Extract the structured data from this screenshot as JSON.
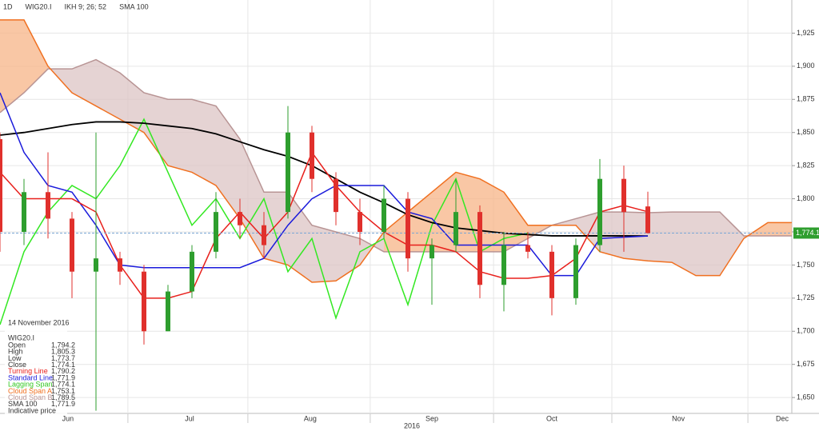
{
  "chart_data": {
    "type": "candlestick",
    "header": [
      "1D",
      "WIG20.I",
      "IKH 9; 26; 52",
      "SMA 100"
    ],
    "xlim": [
      0,
      33
    ],
    "ylim": [
      1638,
      1950
    ],
    "xticks": [
      {
        "value": 2.83,
        "label": "Jun"
      },
      {
        "value": 7.9,
        "label": "Jul"
      },
      {
        "value": 12.93,
        "label": "Aug"
      },
      {
        "value": 18,
        "label": "Sep"
      },
      {
        "value": 23,
        "label": "Oct"
      },
      {
        "value": 28.27,
        "label": "Nov"
      },
      {
        "value": 32.6,
        "label": "Dec"
      }
    ],
    "xgrid": [
      5.33,
      10.33,
      15.43,
      20.57,
      25.5,
      31.17
    ],
    "year_label": "2016",
    "yticks": [
      {
        "value": 1650,
        "label": "1,650"
      },
      {
        "value": 1675,
        "label": "1,675"
      },
      {
        "value": 1700,
        "label": "1,700"
      },
      {
        "value": 1725,
        "label": "1,725"
      },
      {
        "value": 1750,
        "label": "1,750"
      },
      {
        "value": 1775,
        "label": "1,775"
      },
      {
        "value": 1800,
        "label": "1,800"
      },
      {
        "value": 1825,
        "label": "1,825"
      },
      {
        "value": 1850,
        "label": "1,850"
      },
      {
        "value": 1875,
        "label": "1,875"
      },
      {
        "value": 1900,
        "label": "1,900"
      },
      {
        "value": 1925,
        "label": "1,925"
      }
    ],
    "grid": true,
    "candles": {
      "up_color": "#2e9e2e",
      "down_color": "#e0302c",
      "open": [
        1845,
        1775,
        1805,
        1785,
        1745,
        1755,
        1745,
        1700,
        1730,
        1760,
        1790,
        1780,
        1790,
        1850,
        1815,
        1790,
        1775,
        1800,
        1755,
        1765,
        1790,
        1735,
        1765,
        1760,
        1725,
        1765,
        1815,
        1794.2
      ],
      "high": [
        1850,
        1815,
        1835,
        1790,
        1850,
        1760,
        1750,
        1735,
        1765,
        1805,
        1800,
        1790,
        1870,
        1855,
        1820,
        1800,
        1810,
        1805,
        1770,
        1815,
        1795,
        1775,
        1775,
        1765,
        1770,
        1830,
        1825,
        1805.3
      ],
      "low": [
        1760,
        1765,
        1770,
        1725,
        1640,
        1735,
        1690,
        1700,
        1725,
        1755,
        1770,
        1755,
        1785,
        1805,
        1780,
        1765,
        1770,
        1745,
        1720,
        1760,
        1725,
        1715,
        1755,
        1712,
        1720,
        1760,
        1760,
        1773.7
      ],
      "close": [
        1775,
        1805,
        1785,
        1745,
        1755,
        1745,
        1700,
        1730,
        1760,
        1790,
        1780,
        1765,
        1850,
        1815,
        1790,
        1775,
        1800,
        1755,
        1765,
        1790,
        1735,
        1765,
        1760,
        1725,
        1765,
        1815,
        1790,
        1774.1
      ]
    },
    "series": [
      {
        "name": "Cloud Span B",
        "color": "#b89494",
        "values": [
          1865,
          1880,
          1898,
          1898,
          1905,
          1895,
          1880,
          1875,
          1875,
          1870,
          1845,
          1805,
          1805,
          1780,
          1775,
          1770,
          1760,
          1760,
          1760,
          1760,
          1760,
          1760,
          1770,
          1780,
          1785,
          1790,
          1790,
          1789.5,
          1790,
          1790,
          1790,
          1772,
          1772,
          1772
        ]
      },
      {
        "name": "Cloud Span A",
        "color": "#f07020",
        "values": [
          1935,
          1935,
          1900,
          1880,
          1870,
          1860,
          1850,
          1825,
          1820,
          1810,
          1785,
          1755,
          1750,
          1737,
          1738,
          1750,
          1775,
          1790,
          1805,
          1820,
          1815,
          1805,
          1780,
          1780,
          1780,
          1760,
          1755,
          1753.1,
          1752,
          1742,
          1742,
          1770,
          1782,
          1782
        ]
      },
      {
        "name": "Lagging Span",
        "color": "#33e822",
        "values": [
          1705,
          1760,
          1790,
          1810,
          1800,
          1825,
          1860,
          1820,
          1780,
          1800,
          1770,
          1800,
          1745,
          1770,
          1710,
          1760,
          1770,
          1720,
          1780,
          1815,
          1760,
          1770,
          1774.1,
          null,
          null,
          null,
          null,
          null,
          null,
          null,
          null,
          null,
          null,
          null
        ]
      },
      {
        "name": "SMA 100",
        "color": "#000000",
        "values": [
          1848,
          1850,
          1853,
          1856,
          1858,
          1858,
          1857,
          1855,
          1853,
          1849,
          1843,
          1837,
          1832,
          1825,
          1815,
          1805,
          1797,
          1788,
          1782,
          1778,
          1776,
          1774,
          1773,
          1772,
          1772,
          1772,
          1772,
          1771.9,
          null,
          null,
          null,
          null,
          null,
          null
        ]
      },
      {
        "name": "Standard Line",
        "color": "#1a1adb",
        "values": [
          1880,
          1835,
          1810,
          1805,
          1780,
          1750,
          1748,
          1748,
          1748,
          1748,
          1748,
          1755,
          1780,
          1800,
          1810,
          1810,
          1810,
          1790,
          1785,
          1765,
          1765,
          1765,
          1765,
          1742,
          1742,
          1770,
          1771,
          1771.9,
          null,
          null,
          null,
          null,
          null,
          null
        ]
      },
      {
        "name": "Turning Line",
        "color": "#e8201c",
        "values": [
          1820,
          1800,
          1800,
          1800,
          1790,
          1750,
          1725,
          1725,
          1730,
          1770,
          1790,
          1770,
          1790,
          1835,
          1810,
          1790,
          1775,
          1765,
          1765,
          1760,
          1745,
          1740,
          1740,
          1742,
          1755,
          1790,
          1795,
          1790.2,
          null,
          null,
          null,
          null,
          null,
          null
        ]
      }
    ],
    "last_price": {
      "value": 1774.1,
      "label": "1,774.1",
      "color": "#2e9e2e"
    },
    "info_panel": {
      "date": "14 November 2016",
      "symbol": "WIG20.I",
      "rows": [
        [
          "Open",
          "1,794.2"
        ],
        [
          "High",
          "1,805.3"
        ],
        [
          "Low",
          "1,773.7"
        ],
        [
          "Close",
          "1,774.1"
        ],
        [
          "Turning Line",
          "1,790.2"
        ],
        [
          "Standard Line",
          "1,771.9"
        ],
        [
          "Lagging Span",
          "1,774.1"
        ],
        [
          "Cloud Span A",
          "1,753.1"
        ],
        [
          "Cloud Span B",
          "1,789.5"
        ],
        [
          "SMA 100",
          "1,771.9"
        ]
      ],
      "note": "Indicative price"
    }
  }
}
